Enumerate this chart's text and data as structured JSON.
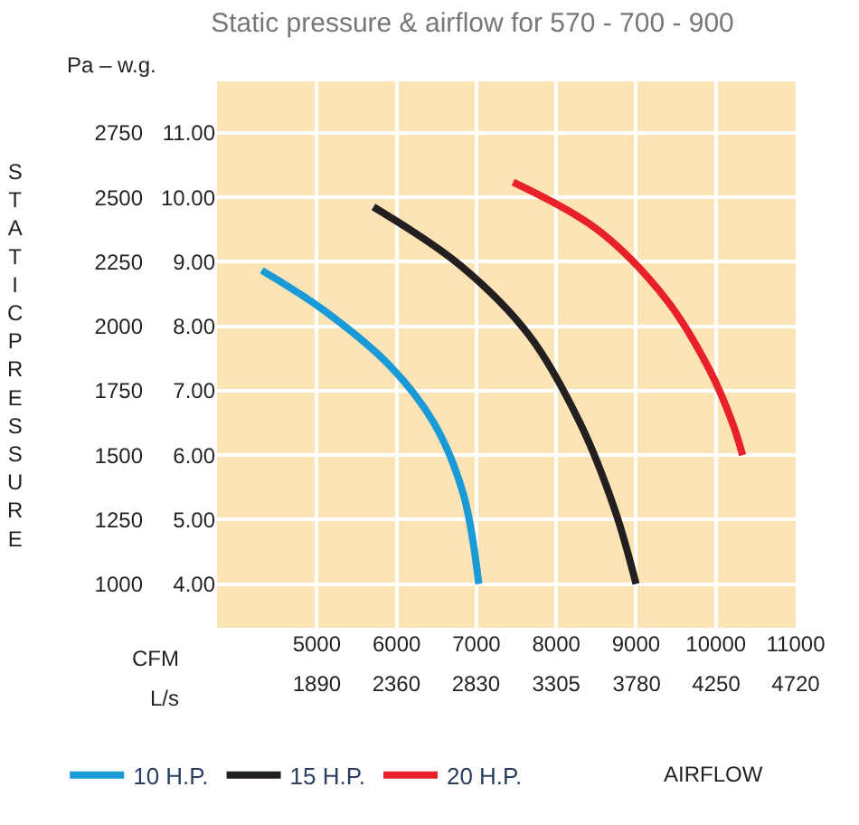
{
  "chart_data": {
    "type": "line",
    "title": "Static pressure & airflow for 570 - 700 - 900",
    "xlabel": "AIRFLOW",
    "ylabel": "STATIC PRESSURE",
    "annotations": [
      "Pa – w.g.",
      "CFM",
      "L/s"
    ],
    "series": [
      {
        "name": "10 H.P.",
        "color": "#1a9ad6",
        "x": [
          4310,
          5065,
          5930,
          6470,
          6835,
          7030
        ],
        "values": [
          2217,
          2067,
          1842,
          1623,
          1350,
          1000
        ]
      },
      {
        "name": "15 H.P.",
        "color": "#231f20",
        "x": [
          5710,
          6790,
          7660,
          8300,
          8740,
          9000
        ],
        "values": [
          2463,
          2238,
          1965,
          1623,
          1282,
          1000
        ]
      },
      {
        "name": "20 H.P.",
        "color": "#e8202a",
        "x": [
          7460,
          8520,
          9385,
          9925,
          10210,
          10335
        ],
        "values": [
          2559,
          2374,
          2101,
          1828,
          1623,
          1500
        ]
      }
    ],
    "xlim": [
      3750,
      11000
    ],
    "ylim": [
      830,
      2950
    ],
    "xticks": [
      5000,
      6000,
      7000,
      8000,
      9000,
      10000,
      11000
    ],
    "x2lim": [
      1300,
      4720
    ],
    "x2ticks": [
      1890,
      2360,
      2830,
      3305,
      3780,
      4250,
      4720
    ],
    "yticks": [
      2750,
      2500,
      2250,
      2000,
      1750,
      1500,
      1250,
      1000
    ],
    "y2lim": [
      3.32,
      11.8
    ],
    "y2ticks": [
      {
        "value": 11,
        "label": "11.00"
      },
      {
        "value": 10,
        "label": "10.00"
      },
      {
        "value": 9,
        "label": "9.00"
      },
      {
        "value": 8,
        "label": "8.00"
      },
      {
        "value": 7,
        "label": "7.00"
      },
      {
        "value": 6,
        "label": "6.00"
      },
      {
        "value": 5,
        "label": "5.00"
      },
      {
        "value": 4,
        "label": "4.00"
      }
    ],
    "grid": true,
    "legend": "bottom",
    "marker": "none",
    "line_style": "solid"
  }
}
